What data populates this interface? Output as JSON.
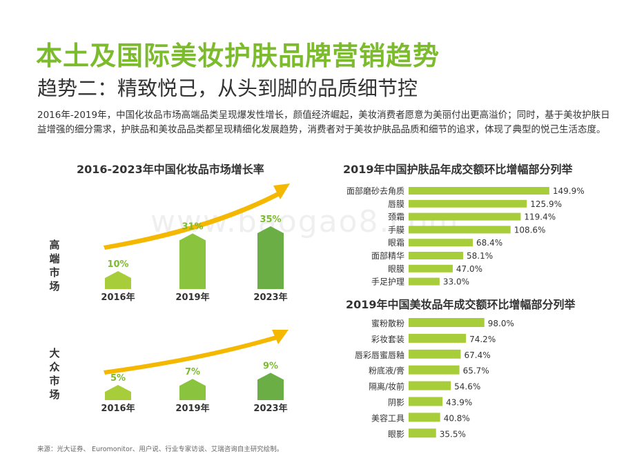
{
  "title": "本土及国际美妆护肤品牌营销趋势",
  "subtitle": "趋势二：精致悦己，从头到脚的品质细节控",
  "paragraph": "2016年-2019年，中国化妆品市场高端品类呈现爆发性增长，颜值经济崛起，美妆消费者愿意为美丽付出更高溢价；同时，基于美妆护肤日益增强的细分需求，护肤品和美妆品品类都呈现精细化发展趋势，消费者对于美妆护肤品品质和细节的追求，体现了典型的悦己生活态度。",
  "source": "来源：光大证券、 Euromonitor、用户说、行业专家访谈、艾瑞咨询自主研究绘制。",
  "watermark": "www.baogao8.com",
  "colors": {
    "title": "#7dbb2e",
    "bar_light": "#a8cd3a",
    "bar_mid": "#8ac43f",
    "bar_dark": "#6aae45",
    "arrow": "#f5b800",
    "label_green": "#7dbb2e"
  },
  "chart_data": [
    {
      "type": "bar",
      "title": "2016-2023年中国化妆品市场增长率",
      "group_label": "高端市场",
      "categories": [
        "2016年",
        "2019年",
        "2023年"
      ],
      "values": [
        10,
        31,
        35
      ],
      "labels": [
        "10%",
        "31%",
        "35%"
      ],
      "unit": "%"
    },
    {
      "type": "bar",
      "title": "",
      "group_label": "大众市场",
      "categories": [
        "2016年",
        "2019年",
        "2023年"
      ],
      "values": [
        5,
        7,
        9
      ],
      "labels": [
        "5%",
        "7%",
        "9%"
      ],
      "unit": "%"
    },
    {
      "type": "bar",
      "orientation": "horizontal",
      "title": "2019年中国护肤品年成交额环比增幅部分列举",
      "categories": [
        "面部磨砂去角质",
        "唇膜",
        "颈霜",
        "手膜",
        "眼霜",
        "面部精华",
        "眼膜",
        "手足护理"
      ],
      "values": [
        149.9,
        125.9,
        119.4,
        108.6,
        68.4,
        58.1,
        47.0,
        33.0
      ],
      "labels": [
        "149.9%",
        "125.9%",
        "119.4%",
        "108.6%",
        "68.4%",
        "58.1%",
        "47.0%",
        "33.0%"
      ],
      "unit": "%"
    },
    {
      "type": "bar",
      "orientation": "horizontal",
      "title": "2019年中国美妆品年成交额环比增幅部分列举",
      "categories": [
        "蜜粉散粉",
        "彩妆套装",
        "唇彩唇蜜唇釉",
        "粉底液/膏",
        "隔离/妆前",
        "阴影",
        "美容工具",
        "眼影"
      ],
      "values": [
        98.0,
        74.2,
        67.4,
        65.7,
        54.6,
        43.9,
        40.8,
        35.5
      ],
      "labels": [
        "98.0%",
        "74.2%",
        "67.4%",
        "65.7%",
        "54.6%",
        "43.9%",
        "40.8%",
        "35.5%"
      ],
      "unit": "%"
    }
  ]
}
